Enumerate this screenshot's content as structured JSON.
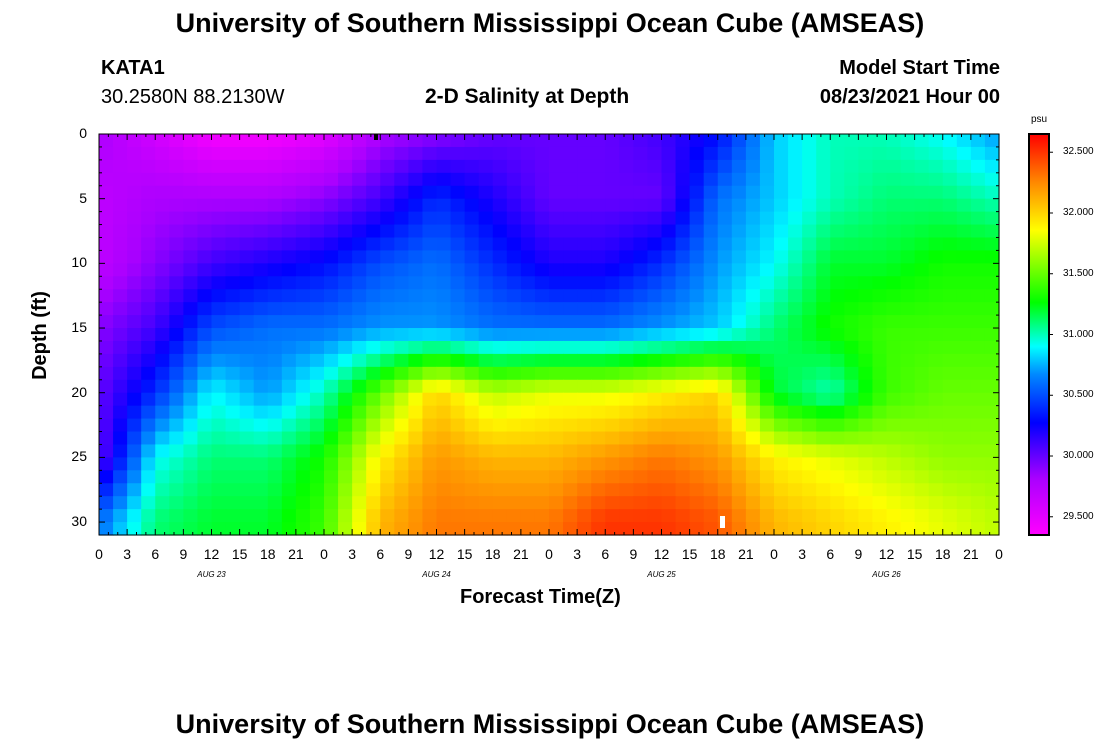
{
  "titles": {
    "top": "University of Southern Mississippi Ocean Cube (AMSEAS)",
    "bottom": "University of Southern Mississippi Ocean Cube (AMSEAS)"
  },
  "header": {
    "station": "KATA1",
    "coords": "30.2580N  88.2130W",
    "plot_title": "2-D Salinity at Depth",
    "model_label": "Model Start Time",
    "model_time": "08/23/2021 Hour 00"
  },
  "colorbar": {
    "unit": "psu",
    "ticks": [
      "32.500",
      "32.000",
      "31.500",
      "31.000",
      "30.500",
      "30.000",
      "29.500"
    ]
  },
  "chart_data": {
    "type": "heatmap",
    "title": "2-D Salinity at Depth",
    "xlabel": "Forecast Time(Z)",
    "ylabel": "Depth (ft)",
    "x_tick_labels": [
      "0",
      "3",
      "6",
      "9",
      "12",
      "15",
      "18",
      "21",
      "0",
      "3",
      "6",
      "9",
      "12",
      "15",
      "18",
      "21",
      "0",
      "3",
      "6",
      "9",
      "12",
      "15",
      "18",
      "21",
      "0",
      "3",
      "6",
      "9",
      "12",
      "15",
      "18",
      "21",
      "0"
    ],
    "day_labels": [
      "AUG 23",
      "AUG 24",
      "AUG 25",
      "AUG 26"
    ],
    "y_tick_labels": [
      "0",
      "5",
      "10",
      "15",
      "20",
      "25",
      "30"
    ],
    "xlim_hours": [
      0,
      96
    ],
    "ylim_ft": [
      0,
      31
    ],
    "colorbar_range_psu": [
      29.35,
      32.65
    ],
    "value_unit": "psu",
    "depth_ft": [
      0,
      5,
      10,
      15,
      20,
      25,
      30
    ],
    "time_hours": [
      0,
      6,
      12,
      18,
      24,
      30,
      36,
      42,
      48,
      54,
      60,
      66,
      72,
      78,
      84,
      90,
      96
    ],
    "salinity": [
      [
        29.8,
        29.6,
        29.4,
        29.4,
        29.5,
        29.8,
        29.9,
        30.0,
        30.0,
        30.0,
        30.1,
        30.3,
        30.8,
        31.0,
        31.0,
        30.9,
        30.7
      ],
      [
        29.7,
        29.8,
        29.8,
        29.8,
        29.9,
        30.1,
        30.4,
        30.2,
        30.0,
        30.0,
        30.0,
        30.6,
        30.8,
        31.0,
        31.1,
        31.1,
        31.0
      ],
      [
        29.7,
        29.9,
        30.1,
        30.2,
        30.3,
        30.5,
        30.6,
        30.4,
        30.2,
        30.2,
        30.4,
        30.7,
        30.9,
        31.2,
        31.2,
        31.3,
        31.3
      ],
      [
        29.9,
        30.1,
        30.5,
        30.6,
        30.6,
        30.7,
        30.7,
        30.6,
        30.6,
        30.6,
        30.7,
        30.8,
        31.1,
        31.3,
        31.4,
        31.4,
        31.4
      ],
      [
        30.0,
        30.4,
        30.9,
        30.7,
        31.0,
        31.5,
        32.0,
        31.7,
        31.8,
        31.8,
        31.9,
        32.0,
        31.2,
        31.0,
        31.4,
        31.5,
        31.5
      ],
      [
        30.0,
        30.9,
        31.1,
        31.1,
        31.3,
        31.9,
        32.2,
        32.1,
        32.1,
        32.2,
        32.3,
        32.2,
        31.9,
        31.8,
        31.7,
        31.6,
        31.6
      ],
      [
        30.6,
        31.1,
        31.2,
        31.2,
        31.4,
        32.1,
        32.3,
        32.3,
        32.3,
        32.5,
        32.5,
        32.4,
        32.1,
        32.0,
        31.9,
        31.8,
        31.7
      ]
    ]
  }
}
